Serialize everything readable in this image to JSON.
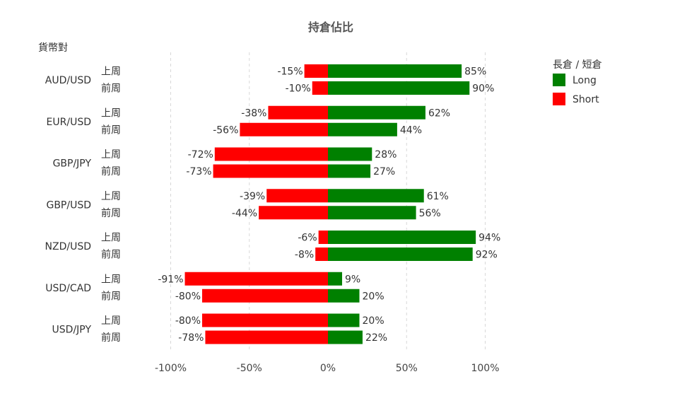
{
  "chart_data": {
    "type": "bar",
    "orientation": "horizontal-diverging",
    "title": "持倉佔比",
    "category_header": "貨幣對",
    "periods": [
      "上周",
      "前周"
    ],
    "categories": [
      "AUD/USD",
      "EUR/USD",
      "GBP/JPY",
      "GBP/USD",
      "NZD/USD",
      "USD/CAD",
      "USD/JPY"
    ],
    "series": [
      {
        "name": "Long",
        "color": "#008000",
        "values": [
          [
            85,
            90
          ],
          [
            62,
            44
          ],
          [
            28,
            27
          ],
          [
            61,
            56
          ],
          [
            94,
            92
          ],
          [
            9,
            20
          ],
          [
            20,
            22
          ]
        ]
      },
      {
        "name": "Short",
        "color": "#ff0000",
        "values": [
          [
            -15,
            -10
          ],
          [
            -38,
            -56
          ],
          [
            -72,
            -73
          ],
          [
            -39,
            -44
          ],
          [
            -6,
            -8
          ],
          [
            -91,
            -80
          ],
          [
            -80,
            -78
          ]
        ]
      }
    ],
    "x_ticks": [
      -100,
      -50,
      0,
      50,
      100
    ],
    "x_tick_labels": [
      "-100%",
      "-50%",
      "0%",
      "50%",
      "100%"
    ],
    "xlim": [
      -100,
      100
    ],
    "value_suffix": "%",
    "legend": {
      "title": "長倉 / 短倉",
      "placement": "top-right"
    },
    "grid": {
      "vertical": true,
      "style": "dashed"
    }
  }
}
